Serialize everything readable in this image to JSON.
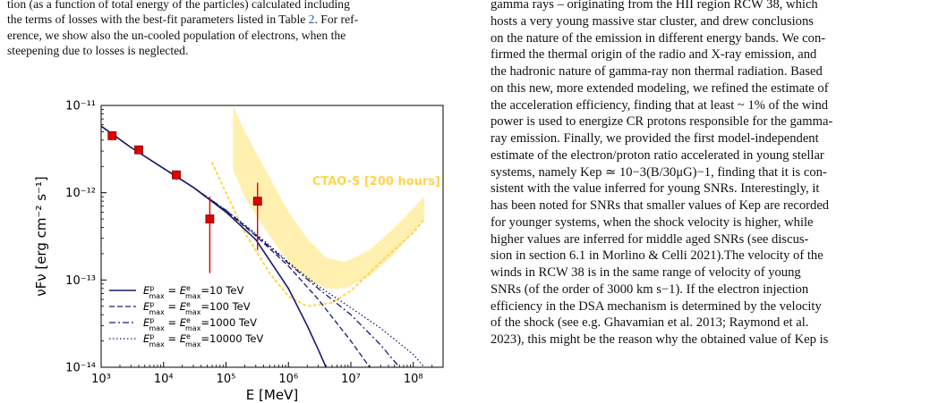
{
  "left_column": {
    "caption_line1": "tion (as a function of total energy of the particles) calculated including",
    "caption_line2_a": "the terms of losses with the best-fit parameters listed in Table ",
    "caption_table_ref": "2",
    "caption_line2_b": ". For ref-",
    "caption_line3": "erence, we show also the un-cooled population of electrons, when the",
    "caption_line4": "steepening due to losses is neglected."
  },
  "right_column": {
    "lines": [
      "gamma rays – originating from the HII region RCW 38, which",
      "hosts a very young massive star cluster, and drew conclusions",
      "on the nature of the emission in different energy bands. We con-",
      "firmed the thermal origin of the radio and X-ray emission, and",
      "the hadronic nature of gamma-ray non thermal radiation. Based",
      "on this new, more extended modeling, we refined the estimate of",
      "the acceleration efficiency, finding that at least ~ 1% of the wind",
      "power is used to energize CR protons responsible for the gamma-",
      "ray emission. Finally, we provided the first model-independent",
      "estimate of the electron/proton ratio accelerated in young stellar",
      "systems, namely Kep ≃ 10−3(B/30μG)−1, finding that it is con-",
      "sistent with the value inferred for young SNRs. Interestingly, it",
      "has been noted for SNRs that smaller values of Kep are recorded",
      "for younger systems, when the shock velocity is higher, while",
      "higher values are inferred for middle aged SNRs (see discus-",
      "sion in section 6.1 in Morlino & Celli 2021).The velocity of the",
      "winds in RCW 38 is in the same range of velocity of young",
      "SNRs (of the order of 3000 km s−1). If the electron injection",
      "efficiency in the DSA mechanism is determined by the velocity",
      "of the shock (see e.g. Ghavamian et al. 2013; Raymond et al.",
      "2023), this might be the reason why the obtained value of Kep is"
    ]
  },
  "chart_data": {
    "type": "line",
    "xscale": "log",
    "yscale": "log",
    "xlim": [
      1000,
      300000000
    ],
    "ylim": [
      1e-14,
      1e-11
    ],
    "xlabel": "E [MeV]",
    "ylabel": "νFν [erg cm⁻² s⁻¹]",
    "xticks": [
      "10³",
      "10⁴",
      "10⁵",
      "10⁶",
      "10⁷",
      "10⁸"
    ],
    "yticks": [
      "10⁻¹⁴",
      "10⁻¹³",
      "10⁻¹²",
      "10⁻¹¹"
    ],
    "annotation": "CTAO-S [200 hours]",
    "legend_position": "lower-left",
    "series": [
      {
        "name": "E^p_max = E^e_max=10 TeV",
        "style": "solid",
        "x": [
          1000,
          3000,
          10000,
          30000,
          100000,
          300000,
          1000000,
          2000000,
          3000000,
          4000000
        ],
        "y": [
          5.8e-12,
          3.3e-12,
          1.9e-12,
          1.15e-12,
          6e-13,
          2.9e-13,
          8e-14,
          3e-14,
          1.6e-14,
          1e-14
        ]
      },
      {
        "name": "E^p_max = E^e_max=100 TeV",
        "style": "dashed",
        "x": [
          1000,
          3000,
          10000,
          30000,
          100000,
          300000,
          1000000,
          3000000,
          10000000,
          20000000
        ],
        "y": [
          5.8e-12,
          3.3e-12,
          1.9e-12,
          1.15e-12,
          6.2e-13,
          3.2e-13,
          1.45e-13,
          6e-14,
          2e-14,
          1e-14
        ]
      },
      {
        "name": "E^p_max = E^e_max=1000 TeV",
        "style": "dashdot",
        "x": [
          1000,
          3000,
          10000,
          30000,
          100000,
          300000,
          1000000,
          3000000,
          10000000,
          30000000,
          60000000
        ],
        "y": [
          5.8e-12,
          3.3e-12,
          1.9e-12,
          1.15e-12,
          6.3e-13,
          3.3e-13,
          1.55e-13,
          8e-14,
          4e-14,
          1.8e-14,
          1e-14
        ]
      },
      {
        "name": "E^p_max = E^e_max=10000 TeV",
        "style": "dotted",
        "x": [
          1000,
          3000,
          10000,
          30000,
          100000,
          300000,
          1000000,
          3000000,
          10000000,
          30000000,
          100000000,
          150000000
        ],
        "y": [
          5.8e-12,
          3.3e-12,
          1.9e-12,
          1.15e-12,
          6.3e-13,
          3.4e-13,
          1.6e-13,
          8.5e-14,
          4.8e-14,
          2.8e-14,
          1.4e-14,
          1e-14
        ]
      }
    ],
    "data_points": [
      {
        "x": 1500,
        "y": 4.5e-12,
        "y_lo": 4.5e-12,
        "y_hi": 4.5e-12
      },
      {
        "x": 4000,
        "y": 3.1e-12,
        "y_lo": 3.1e-12,
        "y_hi": 3.1e-12
      },
      {
        "x": 16000,
        "y": 1.6e-12,
        "y_lo": 1.4e-12,
        "y_hi": 1.8e-12
      },
      {
        "x": 55000,
        "y": 5e-13,
        "y_lo": 1.2e-13,
        "y_hi": 9e-13
      },
      {
        "x": 320000,
        "y": 8e-13,
        "y_lo": 2.2e-13,
        "y_hi": 1.3e-12
      }
    ],
    "sensitivity_band": {
      "x": [
        130000,
        200000,
        400000,
        1000000,
        2000000,
        4000000,
        8000000,
        20000000,
        50000000,
        150000000
      ],
      "y_lo": [
        1.8e-12,
        9e-13,
        4e-13,
        1.6e-13,
        1e-13,
        8e-14,
        8e-14,
        1.1e-13,
        2e-13,
        5e-13
      ],
      "y_hi": [
        1e-11,
        5e-12,
        2e-12,
        6e-13,
        3e-13,
        1.8e-13,
        1.6e-13,
        2.2e-13,
        4e-13,
        9e-13
      ]
    },
    "sensitivity_dotted": {
      "x": [
        60000,
        100000,
        200000,
        500000,
        1000000,
        2000000,
        5000000,
        10000000,
        30000000,
        100000000,
        150000000
      ],
      "y": [
        2.2e-12,
        1e-12,
        3.5e-13,
        1.2e-13,
        6.5e-14,
        5e-14,
        5.5e-14,
        7.5e-14,
        1.6e-13,
        3.5e-13,
        5e-13
      ]
    },
    "colors": {
      "model": "#1a1a6e",
      "points": "#e00000",
      "band": "#fff0b0",
      "dotted": "#ffd54a",
      "label": "#ffd54a"
    }
  }
}
